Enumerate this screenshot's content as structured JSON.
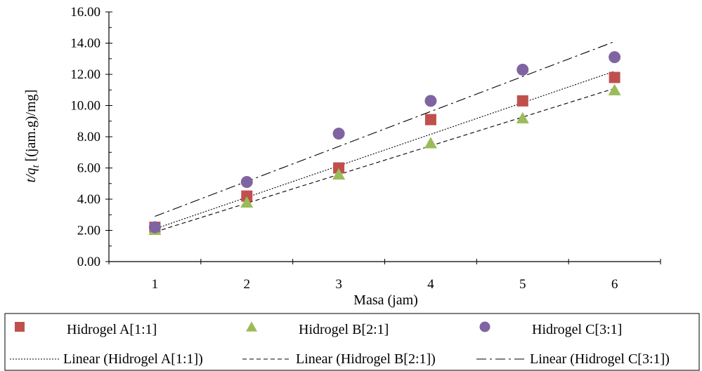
{
  "chart_data": {
    "type": "scatter",
    "xlabel": "Masa (jam)",
    "ylabel_main": "t/q",
    "ylabel_sub": "t",
    "ylabel_rest": " [(jam.g)/mg]",
    "x": [
      1,
      2,
      3,
      4,
      5,
      6
    ],
    "x_ticks": [
      "1",
      "2",
      "3",
      "4",
      "5",
      "6"
    ],
    "y_ticks": [
      "0.00",
      "2.00",
      "4.00",
      "6.00",
      "8.00",
      "10.00",
      "12.00",
      "14.00",
      "16.00"
    ],
    "xlim": [
      0.5,
      6.5
    ],
    "ylim": [
      0,
      16
    ],
    "series": [
      {
        "name": "Hidrogel A[1:1]",
        "marker": "square",
        "color": "#c0504d",
        "values": [
          2.2,
          4.2,
          6.0,
          9.1,
          10.3,
          11.8
        ]
      },
      {
        "name": "Hidrogel B[2:1]",
        "marker": "triangle",
        "color": "#9bbb59",
        "values": [
          2.05,
          3.8,
          5.6,
          7.6,
          9.2,
          11.0
        ]
      },
      {
        "name": "Hidrogel C[3:1]",
        "marker": "circle",
        "color": "#8064a2",
        "values": [
          2.2,
          5.1,
          8.2,
          10.3,
          12.3,
          13.1
        ]
      }
    ],
    "trendlines": [
      {
        "name": "Linear (Hidrogel A[1:1])",
        "style": "dotted",
        "y_at_x1": 2.1,
        "y_at_x6": 12.2
      },
      {
        "name": "Linear (Hidrogel B[2:1])",
        "style": "dashed",
        "y_at_x1": 1.9,
        "y_at_x6": 11.1
      },
      {
        "name": "Linear (Hidrogel C[3:1])",
        "style": "dashdot",
        "y_at_x1": 2.9,
        "y_at_x6": 14.1
      }
    ],
    "legend_position": "bottom",
    "grid": false
  }
}
